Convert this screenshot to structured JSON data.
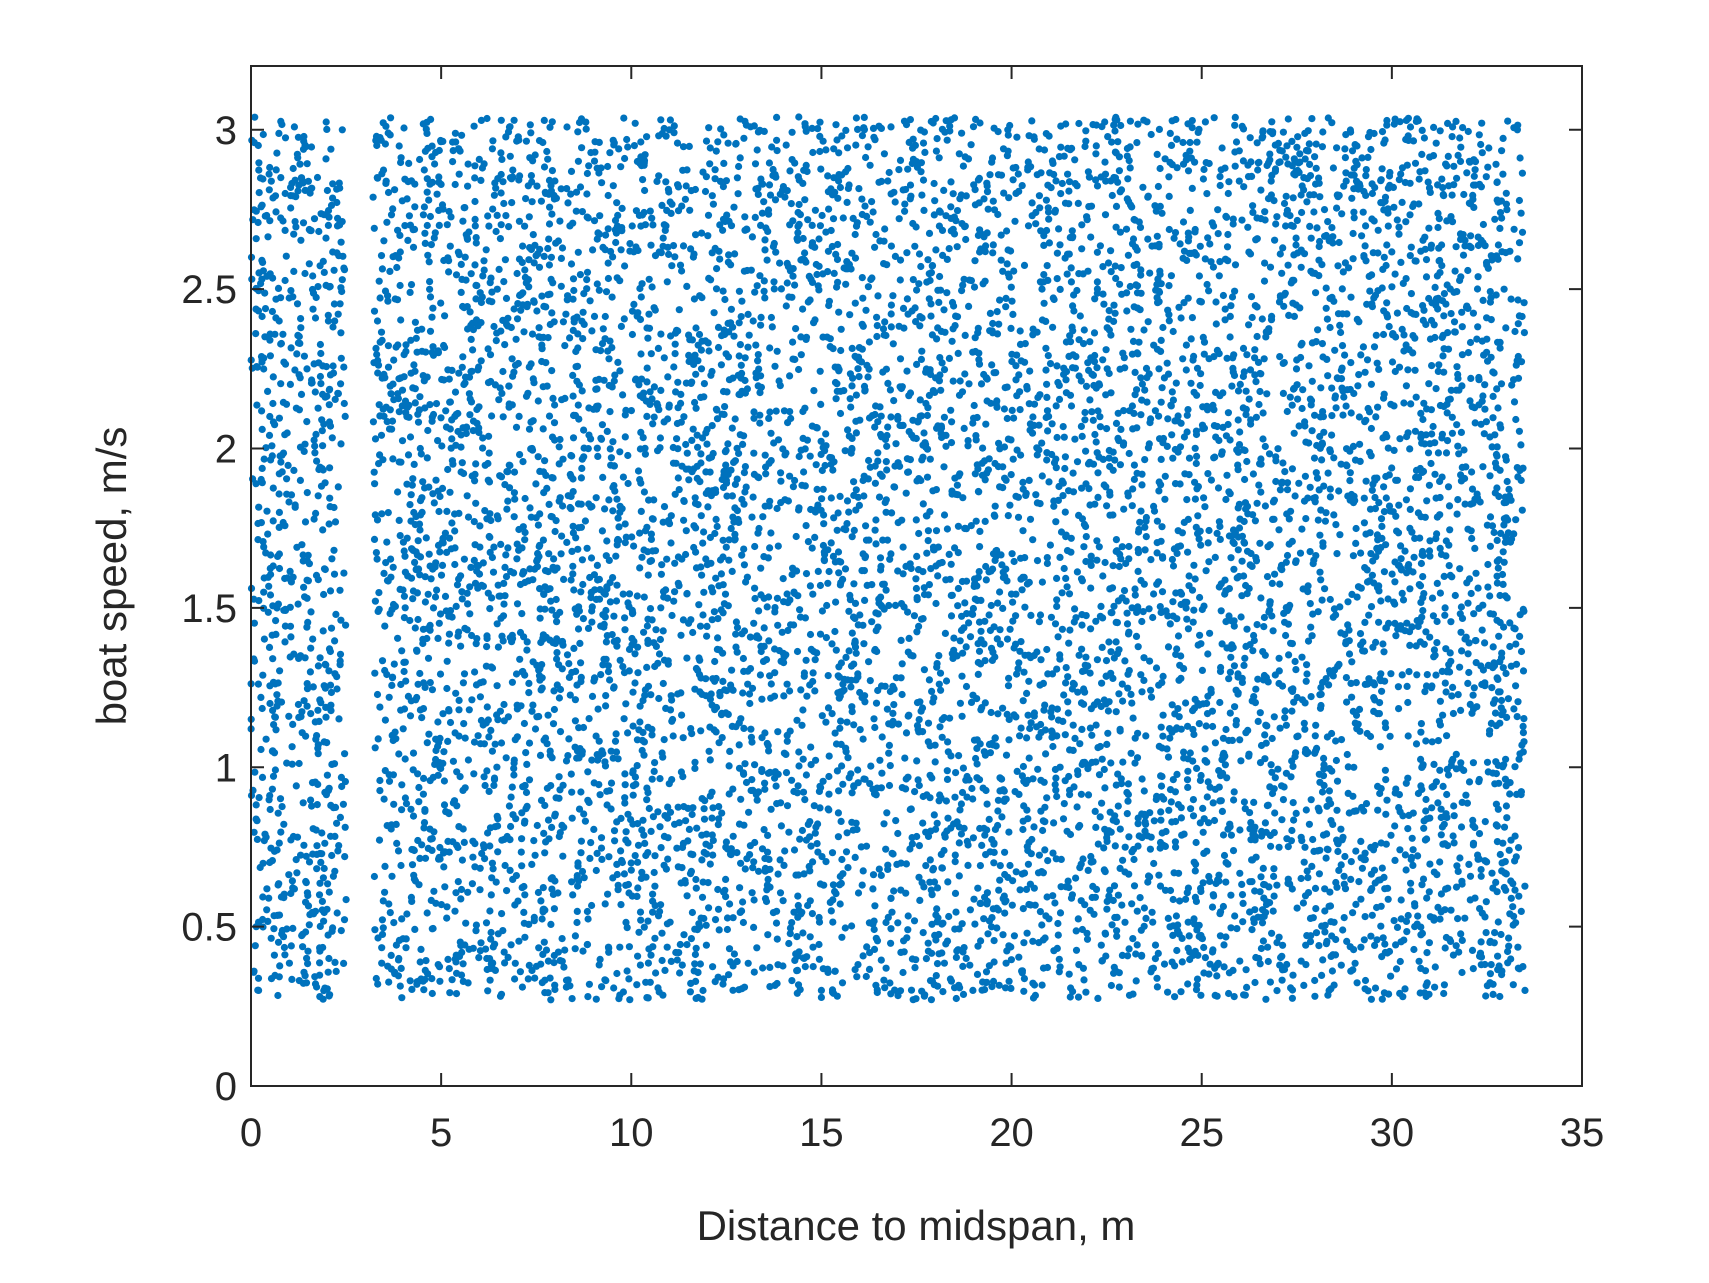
{
  "chart_data": {
    "type": "scatter",
    "title": "",
    "xlabel": "Distance to midspan, m",
    "ylabel": "boat speed, m/s",
    "xlim": [
      0,
      35
    ],
    "ylim": [
      0,
      3.2
    ],
    "xticks": [
      0,
      5,
      10,
      15,
      20,
      25,
      30,
      35
    ],
    "yticks": [
      0,
      0.5,
      1,
      1.5,
      2,
      2.5,
      3
    ],
    "xtick_labels": [
      "0",
      "5",
      "10",
      "15",
      "20",
      "25",
      "30",
      "35"
    ],
    "ytick_labels": [
      "0",
      "0.5",
      "1",
      "1.5",
      "2",
      "2.5",
      "3"
    ],
    "grid": false,
    "legend": "none",
    "marker_color": "#0072BD",
    "axis_color": "#262626",
    "series": [
      {
        "point_count": 9000,
        "x_range": [
          0,
          33.5
        ],
        "y_range": [
          0.27,
          3.04
        ],
        "gap_x_range": [
          2.5,
          3.2
        ],
        "points": [
          [
            0.2,
            0.3
          ],
          [
            0.5,
            1.2
          ],
          [
            0.9,
            2.8
          ],
          [
            1.3,
            1.9
          ],
          [
            1.8,
            0.6
          ],
          [
            2.2,
            2.4
          ],
          [
            2.4,
            3.0
          ],
          [
            3.5,
            0.9
          ],
          [
            4.1,
            2.1
          ],
          [
            4.8,
            1.5
          ],
          [
            5.3,
            2.9
          ],
          [
            6.2,
            0.4
          ],
          [
            7.0,
            1.7
          ],
          [
            7.9,
            2.6
          ],
          [
            8.6,
            0.7
          ],
          [
            9.4,
            1.3
          ],
          [
            10.2,
            2.2
          ],
          [
            11.0,
            3.0
          ],
          [
            11.8,
            0.5
          ],
          [
            12.5,
            1.9
          ],
          [
            13.4,
            2.7
          ],
          [
            14.1,
            1.1
          ],
          [
            15.0,
            0.3
          ],
          [
            15.8,
            2.0
          ],
          [
            16.7,
            1.8
          ],
          [
            17.5,
            2.9
          ],
          [
            18.3,
            0.8
          ],
          [
            19.2,
            1.4
          ],
          [
            19.9,
            3.0
          ],
          [
            20.8,
            2.5
          ],
          [
            21.6,
            0.6
          ],
          [
            22.4,
            1.6
          ],
          [
            23.3,
            2.3
          ],
          [
            24.0,
            0.9
          ],
          [
            24.9,
            1.2
          ],
          [
            25.7,
            2.8
          ],
          [
            26.5,
            0.4
          ],
          [
            27.3,
            1.7
          ],
          [
            28.2,
            2.1
          ],
          [
            29.0,
            1.0
          ],
          [
            29.8,
            2.6
          ],
          [
            30.6,
            0.5
          ],
          [
            31.4,
            1.5
          ],
          [
            32.2,
            2.9
          ],
          [
            32.9,
            0.7
          ],
          [
            33.4,
            1.9
          ],
          [
            33.5,
            0.3
          ],
          [
            33.3,
            3.0
          ]
        ]
      }
    ]
  }
}
